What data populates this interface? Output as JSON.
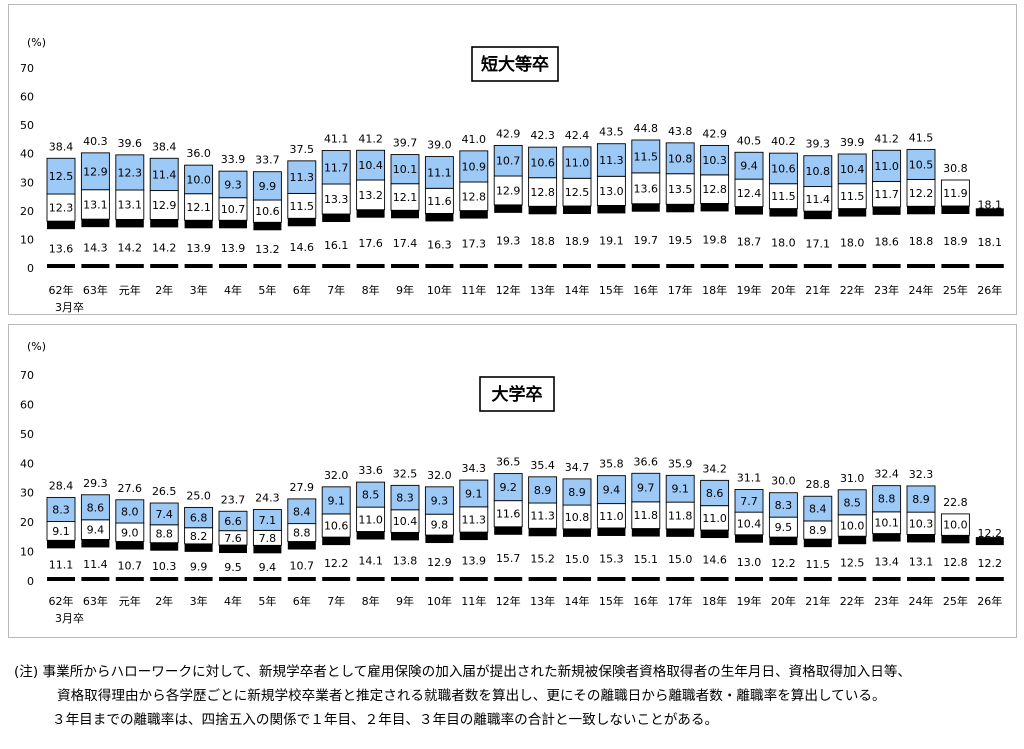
{
  "chart_data": [
    {
      "type": "bar",
      "stacked": true,
      "title": "短大等卒",
      "unit_label": "(%)",
      "ylim": [
        0,
        70
      ],
      "yticks": [
        0,
        10,
        20,
        30,
        40,
        50,
        60,
        70
      ],
      "categories": [
        "62年",
        "63年",
        "元年",
        "2年",
        "3年",
        "4年",
        "5年",
        "6年",
        "7年",
        "8年",
        "9年",
        "10年",
        "11年",
        "12年",
        "13年",
        "14年",
        "15年",
        "16年",
        "17年",
        "18年",
        "19年",
        "20年",
        "21年",
        "22年",
        "23年",
        "24年",
        "25年",
        "26年"
      ],
      "category_sublabel": "3月卒",
      "series": [
        {
          "values": [
            13.6,
            14.3,
            14.2,
            14.2,
            13.9,
            13.9,
            13.2,
            14.6,
            16.1,
            17.6,
            17.4,
            16.3,
            17.3,
            19.3,
            18.8,
            18.9,
            19.1,
            19.7,
            19.5,
            19.8,
            18.7,
            18.0,
            17.1,
            18.0,
            18.6,
            18.8,
            18.9,
            18.1
          ],
          "color": "#000000"
        },
        {
          "values": [
            12.3,
            13.1,
            13.1,
            12.9,
            12.1,
            10.7,
            10.6,
            11.5,
            13.3,
            13.2,
            12.1,
            11.6,
            12.8,
            12.9,
            12.8,
            12.5,
            13.0,
            13.6,
            13.5,
            12.8,
            12.4,
            11.5,
            11.4,
            11.5,
            11.7,
            12.2,
            11.9,
            null
          ],
          "color": "#ffffff"
        },
        {
          "values": [
            12.5,
            12.9,
            12.3,
            11.4,
            10.0,
            9.3,
            9.9,
            11.3,
            11.7,
            10.4,
            10.1,
            11.1,
            10.9,
            10.7,
            10.6,
            11.0,
            11.3,
            11.5,
            10.8,
            10.3,
            9.4,
            10.6,
            10.8,
            10.4,
            11.0,
            10.5,
            null,
            null
          ],
          "color": "#9dc9f7"
        }
      ],
      "totals": [
        38.4,
        40.3,
        39.6,
        38.4,
        36.0,
        33.9,
        33.7,
        37.5,
        41.1,
        41.2,
        39.7,
        39.0,
        41.0,
        42.9,
        42.3,
        42.4,
        43.5,
        44.8,
        43.8,
        42.9,
        40.5,
        40.2,
        39.3,
        39.9,
        41.2,
        41.5,
        30.8,
        18.1
      ]
    },
    {
      "type": "bar",
      "stacked": true,
      "title": "大学卒",
      "unit_label": "(%)",
      "ylim": [
        0,
        70
      ],
      "yticks": [
        0,
        10,
        20,
        30,
        40,
        50,
        60,
        70
      ],
      "categories": [
        "62年",
        "63年",
        "元年",
        "2年",
        "3年",
        "4年",
        "5年",
        "6年",
        "7年",
        "8年",
        "9年",
        "10年",
        "11年",
        "12年",
        "13年",
        "14年",
        "15年",
        "16年",
        "17年",
        "18年",
        "19年",
        "20年",
        "21年",
        "22年",
        "23年",
        "24年",
        "25年",
        "26年"
      ],
      "category_sublabel": "3月卒",
      "series": [
        {
          "values": [
            11.1,
            11.4,
            10.7,
            10.3,
            9.9,
            9.5,
            9.4,
            10.7,
            12.2,
            14.1,
            13.8,
            12.9,
            13.9,
            15.7,
            15.2,
            15.0,
            15.3,
            15.1,
            15.0,
            14.6,
            13.0,
            12.2,
            11.5,
            12.5,
            13.4,
            13.1,
            12.8,
            12.2
          ],
          "color": "#000000"
        },
        {
          "values": [
            9.1,
            9.4,
            9.0,
            8.8,
            8.2,
            7.6,
            7.8,
            8.8,
            10.6,
            11.0,
            10.4,
            9.8,
            11.3,
            11.6,
            11.3,
            10.8,
            11.0,
            11.8,
            11.8,
            11.0,
            10.4,
            9.5,
            8.9,
            10.0,
            10.1,
            10.3,
            10.0,
            null
          ],
          "color": "#ffffff"
        },
        {
          "values": [
            8.3,
            8.6,
            8.0,
            7.4,
            6.8,
            6.6,
            7.1,
            8.4,
            9.1,
            8.5,
            8.3,
            9.3,
            9.1,
            9.2,
            8.9,
            8.9,
            9.4,
            9.7,
            9.1,
            8.6,
            7.7,
            8.3,
            8.4,
            8.5,
            8.8,
            8.9,
            null,
            null
          ],
          "color": "#9dc9f7"
        }
      ],
      "totals": [
        28.4,
        29.3,
        27.6,
        26.5,
        25.0,
        23.7,
        24.3,
        27.9,
        32.0,
        33.6,
        32.5,
        32.0,
        34.3,
        36.5,
        35.4,
        34.7,
        35.8,
        36.6,
        35.9,
        34.2,
        31.1,
        30.0,
        28.8,
        31.0,
        32.4,
        32.3,
        22.8,
        12.2
      ]
    }
  ],
  "notes": {
    "line1": "(注) 事業所からハローワークに対して、新規学卒者として雇用保険の加入届が提出された新規被保険者資格取得者の生年月日、資格取得加入日等、",
    "line2": "資格取得理由から各学歴ごとに新規学校卒業者と推定される就職者数を算出し、更にその離職日から離職者数・離職率を算出している。",
    "line3": "３年目までの離職率は、四捨五入の関係で１年目、２年目、３年目の離職率の合計と一致しないことがある。"
  }
}
